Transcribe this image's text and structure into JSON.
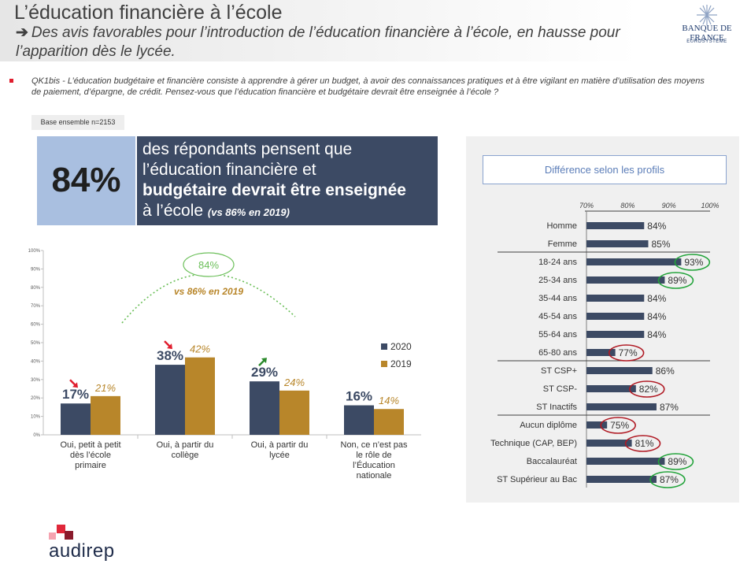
{
  "header": {
    "title": "L’éducation financière à l’école",
    "arrow": "➔",
    "subtitle": "Des avis favorables pour l’introduction de l’éducation financière à l’école, en hausse pour l’apparition dès le lycée."
  },
  "logo": {
    "name": "BANQUE DE FRANCE",
    "sub": "EUROSYSTÈME"
  },
  "question": "QK1bis - L’éducation budgétaire et financière consiste à apprendre à gérer un budget, à avoir des connaissances pratiques et à être vigilant en matière d’utilisation des moyens de paiement, d’épargne, de crédit. Pensez-vous que l’éducation financière et budgétaire devrait être enseignée à l’école ?",
  "base": "Base ensemble  n=2153",
  "highlight": {
    "value": "84%",
    "line1": "des répondants pensent que",
    "line2": "l’éducation financière et",
    "line3": "budgétaire devrait être enseignée",
    "line4": "à l’école",
    "note": "(vs 86% en 2019)"
  },
  "colors": {
    "dark": "#3c4a64",
    "gold": "#b8862a",
    "light_blue": "#a9bfe0",
    "green": "#22a33a",
    "red": "#b01a24"
  },
  "chart_data": [
    {
      "type": "bar",
      "categories": [
        "Oui, petit à petit dès l’école primaire",
        "Oui, à partir du collège",
        "Oui, à partir du lycée",
        "Non, ce n’est pas le rôle de l’Éducation nationale"
      ],
      "series": [
        {
          "name": "2020",
          "values": [
            17,
            38,
            29,
            16
          ],
          "labels": [
            "17%",
            "38%",
            "29%",
            "16%"
          ]
        },
        {
          "name": "2019",
          "values": [
            21,
            42,
            24,
            14
          ],
          "labels": [
            "21%",
            "42%",
            "24%",
            "14%"
          ]
        }
      ],
      "trends": [
        "down",
        "down",
        "up",
        "none"
      ],
      "yticks": [
        "0%",
        "10%",
        "20%",
        "30%",
        "40%",
        "50%",
        "60%",
        "70%",
        "80%",
        "90%",
        "100%"
      ],
      "ylim": [
        0,
        100
      ],
      "annotation_total": "84%",
      "annotation_prev": "vs 86% en 2019",
      "legend": [
        "2020",
        "2019"
      ]
    },
    {
      "type": "bar",
      "orientation": "horizontal",
      "title": "Différence selon les profils",
      "xticks": [
        "70%",
        "80%",
        "90%",
        "100%"
      ],
      "xlim": [
        70,
        100
      ],
      "categories": [
        "Homme",
        "Femme",
        "18-24 ans",
        "25-34 ans",
        "35-44 ans",
        "45-54 ans",
        "55-64 ans",
        "65-80 ans",
        "ST CSP+",
        "ST CSP-",
        "ST Inactifs",
        "Aucun diplôme",
        "Technique (CAP, BEP)",
        "Baccalauréat",
        "ST Supérieur au Bac"
      ],
      "values": [
        84,
        85,
        93,
        89,
        84,
        84,
        84,
        77,
        86,
        82,
        87,
        75,
        81,
        89,
        87
      ],
      "labels": [
        "84%",
        "85%",
        "93%",
        "89%",
        "84%",
        "84%",
        "84%",
        "77%",
        "86%",
        "82%",
        "87%",
        "75%",
        "81%",
        "89%",
        "87%"
      ],
      "highlights": [
        "",
        "",
        "green",
        "green",
        "",
        "",
        "",
        "red",
        "",
        "red",
        "",
        "red",
        "red",
        "green",
        "green"
      ]
    }
  ],
  "brand": "audirep"
}
